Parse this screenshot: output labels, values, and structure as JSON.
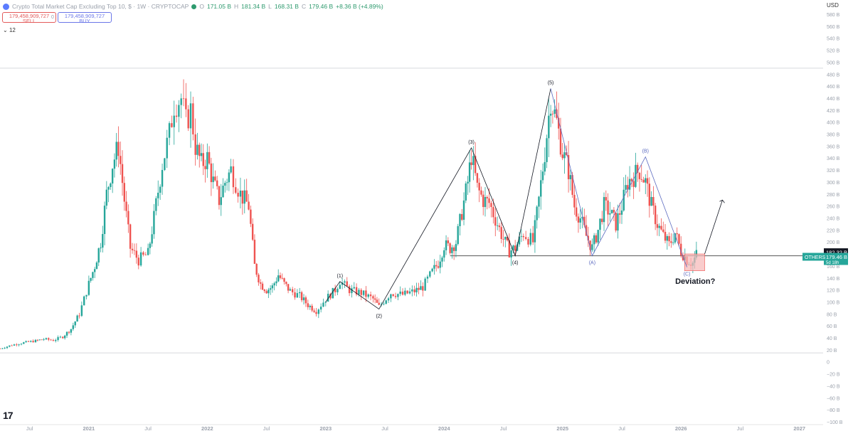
{
  "header": {
    "title": "Crypto Total Market Cap Excluding Top 10, $ · 1W · CRYPTOCAP",
    "open": "171.05 B",
    "high": "181.34 B",
    "low": "168.31 B",
    "close": "179.46 B",
    "change": "+8.36 B (+4.89%)",
    "open_label": "O",
    "high_label": "H",
    "low_label": "L",
    "close_label": "C"
  },
  "trade": {
    "sell_price": "179,458,909,727",
    "sell_label": "SELL",
    "mid": "0",
    "buy_price": "179,458,909,727",
    "buy_label": "BUY"
  },
  "indicator": {
    "label": "12"
  },
  "currency": "USD",
  "colors": {
    "up": "#26a69a",
    "down": "#ef5350",
    "wave_black": "#131722",
    "wave_blue": "#5c6bc0",
    "deviation_box": "#f7b7b7"
  },
  "chart_data": {
    "type": "candlestick",
    "title": "Crypto Total Market Cap Excluding Top 10, $",
    "interval": "1W",
    "exchange": "CRYPTOCAP",
    "y_unit": "B",
    "ylim": [
      -100,
      580
    ],
    "y_ticks": [
      "580 B",
      "560 B",
      "540 B",
      "520 B",
      "500 B",
      "480 B",
      "460 B",
      "440 B",
      "420 B",
      "400 B",
      "380 B",
      "360 B",
      "340 B",
      "320 B",
      "300 B",
      "280 B",
      "260 B",
      "240 B",
      "220 B",
      "200 B",
      "180 B",
      "160 B",
      "140 B",
      "120 B",
      "100 B",
      "80 B",
      "60 B",
      "40 B",
      "20 B",
      "0",
      "−20 B",
      "−40 B",
      "−60 B",
      "−80 B",
      "−100 B"
    ],
    "x_ticks": [
      "Jul",
      "2021",
      "Jul",
      "2022",
      "Jul",
      "2023",
      "Jul",
      "2024",
      "Jul",
      "2025",
      "Jul",
      "2026",
      "Jul",
      "2027"
    ],
    "x_tick_dates": [
      2020.5,
      2021.0,
      2021.5,
      2022.0,
      2022.5,
      2023.0,
      2023.5,
      2024.0,
      2024.5,
      2025.0,
      2025.5,
      2026.0,
      2026.5,
      2027.0
    ],
    "xlim": [
      2020.25,
      2027.2
    ],
    "series": [
      {
        "name": "OTHERS",
        "points": [
          [
            2020.25,
            22
          ],
          [
            2020.35,
            28
          ],
          [
            2020.45,
            32
          ],
          [
            2020.55,
            35
          ],
          [
            2020.62,
            38
          ],
          [
            2020.7,
            36
          ],
          [
            2020.78,
            42
          ],
          [
            2020.85,
            55
          ],
          [
            2020.92,
            80
          ],
          [
            2021.0,
            130
          ],
          [
            2021.05,
            160
          ],
          [
            2021.1,
            200
          ],
          [
            2021.15,
            280
          ],
          [
            2021.2,
            330
          ],
          [
            2021.25,
            360
          ],
          [
            2021.3,
            270
          ],
          [
            2021.35,
            190
          ],
          [
            2021.42,
            170
          ],
          [
            2021.5,
            180
          ],
          [
            2021.55,
            240
          ],
          [
            2021.62,
            330
          ],
          [
            2021.68,
            380
          ],
          [
            2021.72,
            430
          ],
          [
            2021.78,
            440
          ],
          [
            2021.82,
            400
          ],
          [
            2021.86,
            420
          ],
          [
            2021.9,
            360
          ],
          [
            2021.95,
            330
          ],
          [
            2022.0,
            340
          ],
          [
            2022.05,
            300
          ],
          [
            2022.1,
            270
          ],
          [
            2022.15,
            300
          ],
          [
            2022.2,
            320
          ],
          [
            2022.28,
            280
          ],
          [
            2022.35,
            260
          ],
          [
            2022.4,
            160
          ],
          [
            2022.45,
            130
          ],
          [
            2022.5,
            120
          ],
          [
            2022.55,
            125
          ],
          [
            2022.6,
            145
          ],
          [
            2022.65,
            130
          ],
          [
            2022.7,
            118
          ],
          [
            2022.78,
            110
          ],
          [
            2022.85,
            95
          ],
          [
            2022.92,
            85
          ],
          [
            2023.0,
            105
          ],
          [
            2023.08,
            120
          ],
          [
            2023.12,
            135
          ],
          [
            2023.2,
            120
          ],
          [
            2023.3,
            115
          ],
          [
            2023.4,
            105
          ],
          [
            2023.45,
            92
          ],
          [
            2023.55,
            115
          ],
          [
            2023.65,
            112
          ],
          [
            2023.75,
            118
          ],
          [
            2023.82,
            125
          ],
          [
            2023.9,
            150
          ],
          [
            2023.95,
            165
          ],
          [
            2024.0,
            195
          ],
          [
            2024.05,
            190
          ],
          [
            2024.1,
            200
          ],
          [
            2024.15,
            250
          ],
          [
            2024.2,
            300
          ],
          [
            2024.23,
            345
          ],
          [
            2024.28,
            290
          ],
          [
            2024.33,
            270
          ],
          [
            2024.38,
            265
          ],
          [
            2024.45,
            230
          ],
          [
            2024.5,
            205
          ],
          [
            2024.55,
            185
          ],
          [
            2024.6,
            190
          ],
          [
            2024.67,
            215
          ],
          [
            2024.75,
            200
          ],
          [
            2024.8,
            270
          ],
          [
            2024.85,
            350
          ],
          [
            2024.9,
            440
          ],
          [
            2024.95,
            400
          ],
          [
            2025.0,
            350
          ],
          [
            2025.05,
            320
          ],
          [
            2025.1,
            260
          ],
          [
            2025.15,
            240
          ],
          [
            2025.2,
            210
          ],
          [
            2025.25,
            190
          ],
          [
            2025.3,
            220
          ],
          [
            2025.35,
            260
          ],
          [
            2025.4,
            250
          ],
          [
            2025.45,
            230
          ],
          [
            2025.5,
            260
          ],
          [
            2025.55,
            300
          ],
          [
            2025.6,
            310
          ],
          [
            2025.65,
            320
          ],
          [
            2025.7,
            300
          ],
          [
            2025.75,
            260
          ],
          [
            2025.8,
            230
          ],
          [
            2025.85,
            210
          ],
          [
            2025.9,
            195
          ],
          [
            2025.95,
            215
          ],
          [
            2026.0,
            185
          ],
          [
            2026.05,
            170
          ],
          [
            2026.1,
            165
          ],
          [
            2026.13,
            179.46
          ]
        ]
      }
    ],
    "wave_labels_black": [
      "(1)",
      "(2)",
      "(3)",
      "(4)",
      "(5)"
    ],
    "wave_labels_blue": [
      "(A)",
      "(B)",
      "(C)"
    ],
    "wave_points_black": [
      [
        2023.12,
        134
      ],
      [
        2023.45,
        88
      ],
      [
        2024.23,
        357
      ],
      [
        2024.6,
        177
      ],
      [
        2024.9,
        456
      ]
    ],
    "wave_points_blue": [
      [
        2025.25,
        177
      ],
      [
        2025.7,
        342
      ],
      [
        2026.05,
        158
      ]
    ],
    "annotation": "Deviation?",
    "horizontal_levels": [
      490,
      177,
      15
    ],
    "price_label_current": "179.46 B",
    "countdown": "5d 18h",
    "price_label_marker": "182.32 B",
    "series_label": "OTHERS"
  }
}
